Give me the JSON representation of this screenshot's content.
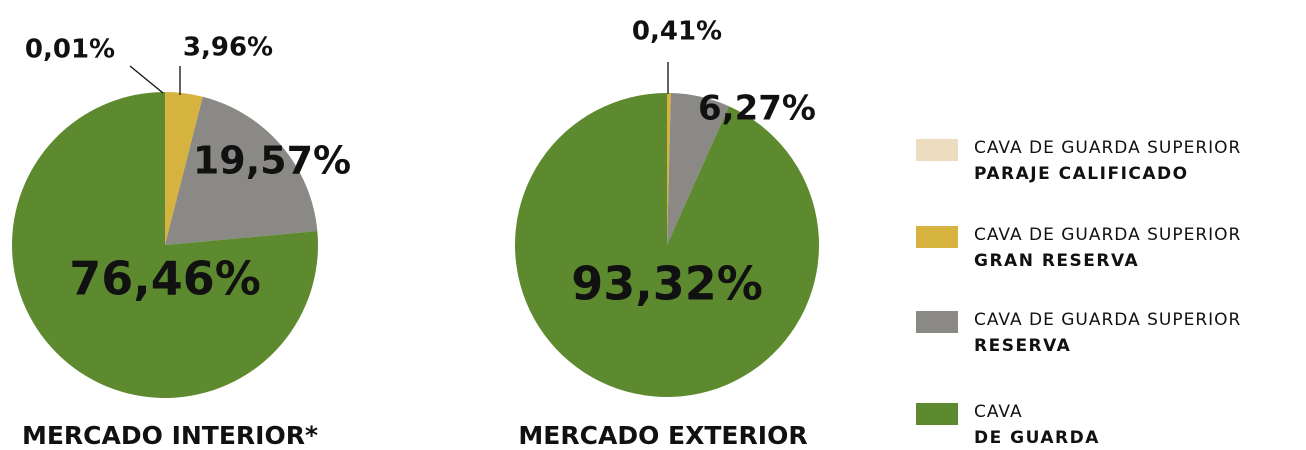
{
  "chart_data": [
    {
      "type": "pie",
      "title": "MERCADO INTERIOR*",
      "values": [
        0.01,
        3.96,
        19.57,
        76.46
      ],
      "value_labels": [
        "0,01%",
        "3,96%",
        "19,57%",
        "76,46%"
      ],
      "colors": [
        "#ecdcc0",
        "#d6b23e",
        "#8a8986",
        "#5e8a2f"
      ]
    },
    {
      "type": "pie",
      "title": "MERCADO EXTERIOR",
      "values": [
        0.41,
        6.27,
        93.32
      ],
      "value_labels": [
        "0,41%",
        "6,27%",
        "93,32%"
      ],
      "colors": [
        "#d6b23e",
        "#8a8986",
        "#5e8a2f"
      ]
    }
  ],
  "legend": {
    "items": [
      {
        "text": "CAVA DE GUARDA SUPERIOR",
        "bold": "PARAJE CALIFICADO",
        "color": "#ecdcc0"
      },
      {
        "text": "CAVA DE GUARDA SUPERIOR",
        "bold": "GRAN RESERVA",
        "color": "#d6b23e"
      },
      {
        "text": "CAVA DE GUARDA SUPERIOR",
        "bold": "RESERVA",
        "color": "#8a8986"
      },
      {
        "text": "CAVA",
        "bold": "DE GUARDA",
        "color": "#5e8a2f"
      }
    ]
  }
}
